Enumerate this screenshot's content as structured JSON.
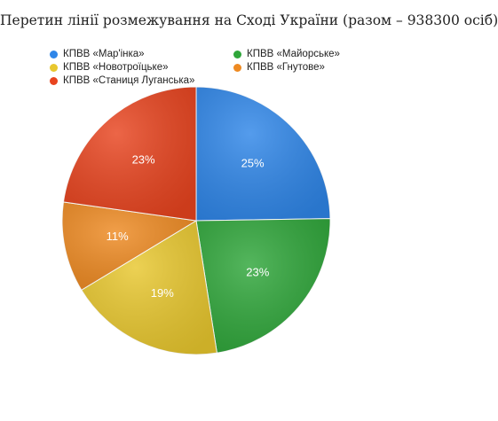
{
  "chart_data": {
    "type": "pie",
    "title": "Перетин лінії розмежування на Сході України (разом – 938300 осіб)",
    "legend_position": "top",
    "slices": [
      {
        "label": "КПВВ «Мар'інка»",
        "value": 25,
        "display": "25%",
        "color": "#2f86e8"
      },
      {
        "label": "КПВВ «Майорське»",
        "value": 23,
        "display": "23%",
        "color": "#2fa63a"
      },
      {
        "label": "КПВВ «Новотроїцьке»",
        "value": 19,
        "display": "19%",
        "color": "#e8c72e"
      },
      {
        "label": "КПВВ «Гнутове»",
        "value": 11,
        "display": "11%",
        "color": "#ee8a22"
      },
      {
        "label": "КПВВ «Станиця Луганська»",
        "value": 23,
        "display": "23%",
        "color": "#e8441f"
      }
    ]
  }
}
